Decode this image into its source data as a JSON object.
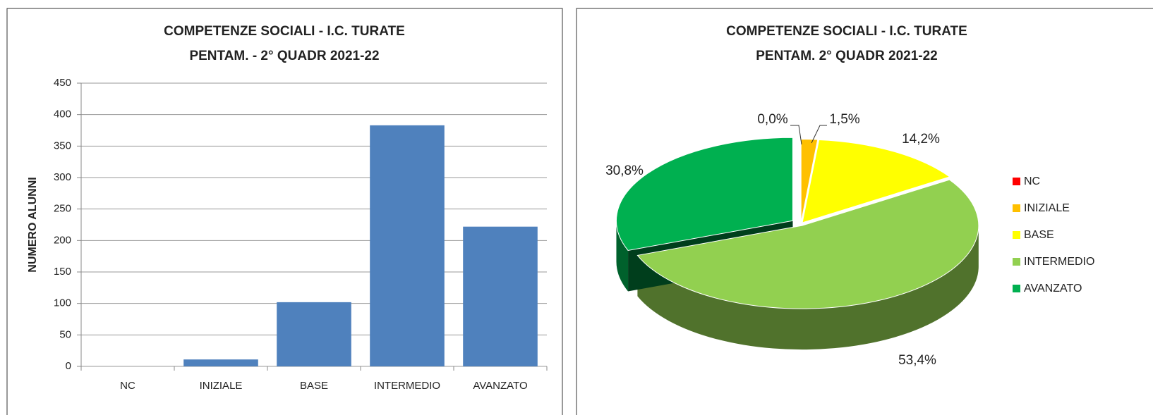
{
  "chart_data": [
    {
      "type": "bar",
      "title": [
        "COMPETENZE SOCIALI  - I.C. TURATE",
        "PENTAM. - 2° QUADR 2021-22"
      ],
      "y_label": "NUMERO ALUNNI",
      "categories": [
        "NC",
        "INIZIALE",
        "BASE",
        "INTERMEDIO",
        "AVANZATO"
      ],
      "values": [
        0,
        11,
        102,
        383,
        222
      ],
      "color": "#4f81bd",
      "ylim": [
        0,
        450
      ],
      "yticks": [
        0,
        50,
        100,
        150,
        200,
        250,
        300,
        350,
        400,
        450
      ],
      "grid": true
    },
    {
      "type": "pie",
      "title": [
        "COMPETENZE SOCIALI  - I.C. TURATE",
        "PENTAM. 2° QUADR 2021-22"
      ],
      "categories": [
        "NC",
        "INIZIALE",
        "BASE",
        "INTERMEDIO",
        "AVANZATO"
      ],
      "values": [
        0,
        1.5,
        14.2,
        53.4,
        30.8
      ],
      "value_labels": [
        "0,0%",
        "1,5%",
        "14,2%",
        "53,4%",
        "30,8%"
      ],
      "colors": [
        "#ff0000",
        "#ffc000",
        "#ffff00",
        "#92d050",
        "#00b050"
      ],
      "legend": "right"
    }
  ]
}
